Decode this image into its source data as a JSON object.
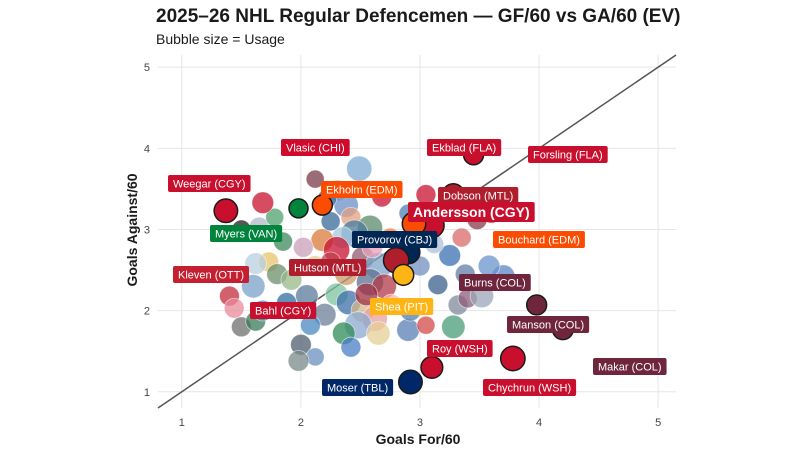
{
  "title": "2025–26 NHL Regular Defencemen — GF/60 vs GA/60 (EV)",
  "subtitle": "Bubble size = Usage",
  "chart_data": {
    "type": "scatter",
    "xlabel": "Goals For/60",
    "ylabel": "Goals Against/60",
    "xlim": [
      0.8,
      5.15
    ],
    "ylim": [
      0.8,
      5.15
    ],
    "xticks": [
      "1",
      "2",
      "3",
      "4",
      "5"
    ],
    "yticks": [
      "1",
      "2",
      "3",
      "4",
      "5"
    ],
    "grid": true,
    "reference_line": "y = x",
    "colors": {
      "CHI": "#cf0a2c",
      "FLA": "#c8102e",
      "CGY": "#c8102e",
      "EDM": "#fc4c02",
      "MTL": "#af1e2d",
      "VAN": "#00843d",
      "CBJ": "#002654",
      "OTT": "#c52032",
      "COL": "#6f263d",
      "PIT": "#fcb514",
      "WSH": "#c8102e",
      "TBL": "#002868",
      "line": "#555555",
      "grid": "#e6e6e6"
    },
    "labeled_points": [
      {
        "player": "Vlasic",
        "team": "CHI",
        "label": "Vlasic (CHI)"
      },
      {
        "player": "Ekblad",
        "team": "FLA",
        "label": "Ekblad (FLA)",
        "x": 3.45,
        "y": 3.92,
        "size": 0.55
      },
      {
        "player": "Forsling",
        "team": "FLA",
        "label": "Forsling (FLA)"
      },
      {
        "player": "Weegar",
        "team": "CGY",
        "label": "Weegar (CGY)",
        "x": 1.37,
        "y": 3.23,
        "size": 0.75
      },
      {
        "player": "Ekholm",
        "team": "EDM",
        "label": "Ekholm (EDM)",
        "x": 2.18,
        "y": 3.3,
        "size": 0.55
      },
      {
        "player": "Dobson",
        "team": "MTL",
        "label": "Dobson (MTL)",
        "x": 3.28,
        "y": 3.43,
        "size": 0.65
      },
      {
        "player": "Andersson",
        "team": "CGY",
        "label": "Andersson (CGY)",
        "highlight": true,
        "x": 3.1,
        "y": 3.05,
        "size": 0.8
      },
      {
        "player": "Myers",
        "team": "VAN",
        "label": "Myers (VAN)",
        "x": 1.98,
        "y": 3.26,
        "size": 0.5
      },
      {
        "player": "Provorov",
        "team": "CBJ",
        "label": "Provorov (CBJ)",
        "x": 2.9,
        "y": 2.72,
        "size": 0.75
      },
      {
        "player": "Bouchard",
        "team": "EDM",
        "label": "Bouchard (EDM)",
        "x": 2.95,
        "y": 3.07,
        "size": 0.75
      },
      {
        "player": "Kleven",
        "team": "OTT",
        "label": "Kleven (OTT)"
      },
      {
        "player": "Hutson",
        "team": "MTL",
        "label": "Hutson (MTL)",
        "x": 2.8,
        "y": 2.62,
        "size": 0.85
      },
      {
        "player": "Burns",
        "team": "COL",
        "label": "Burns (COL)"
      },
      {
        "player": "Bahl",
        "team": "CGY",
        "label": "Bahl (CGY)"
      },
      {
        "player": "Shea",
        "team": "PIT",
        "label": "Shea (PIT)",
        "x": 2.86,
        "y": 2.44,
        "size": 0.6
      },
      {
        "player": "Manson",
        "team": "COL",
        "label": "Manson (COL)",
        "x": 3.98,
        "y": 2.07,
        "size": 0.55
      },
      {
        "player": "Roy",
        "team": "WSH",
        "label": "Roy (WSH)",
        "x": 3.1,
        "y": 1.3,
        "size": 0.65
      },
      {
        "player": "Makar",
        "team": "COL",
        "label": "Makar (COL)",
        "x": 4.2,
        "y": 1.77,
        "size": 0.6
      },
      {
        "player": "Chychrun",
        "team": "WSH",
        "label": "Chychrun (WSH)",
        "x": 3.78,
        "y": 1.41,
        "size": 0.8
      },
      {
        "player": "Moser",
        "team": "TBL",
        "label": "Moser (TBL)",
        "x": 2.92,
        "y": 1.12,
        "size": 0.75
      }
    ],
    "other_points": [
      {
        "x": 2.49,
        "y": 3.75,
        "size": 0.85,
        "color": "#7fa9d4"
      },
      {
        "x": 2.31,
        "y": 3.48,
        "size": 0.6,
        "color": "#8fb3de"
      },
      {
        "x": 2.38,
        "y": 3.3,
        "size": 0.8,
        "color": "#6b8fc7"
      },
      {
        "x": 2.42,
        "y": 3.15,
        "size": 0.55,
        "color": "#e0a080"
      },
      {
        "x": 2.68,
        "y": 3.4,
        "size": 0.55,
        "color": "#c8102e"
      },
      {
        "x": 2.58,
        "y": 3.02,
        "size": 0.85,
        "color": "#5a8a6b"
      },
      {
        "x": 2.45,
        "y": 2.95,
        "size": 0.95,
        "color": "#4b7b9c"
      },
      {
        "x": 2.35,
        "y": 2.9,
        "size": 0.65,
        "color": "#a6c8e0"
      },
      {
        "x": 2.18,
        "y": 2.87,
        "size": 0.7,
        "color": "#d97a3a"
      },
      {
        "x": 2.3,
        "y": 2.75,
        "size": 0.9,
        "color": "#c8102e"
      },
      {
        "x": 2.52,
        "y": 2.65,
        "size": 0.7,
        "color": "#8f5a6e"
      },
      {
        "x": 2.65,
        "y": 2.55,
        "size": 0.95,
        "color": "#7da6c9"
      },
      {
        "x": 2.38,
        "y": 2.45,
        "size": 0.7,
        "color": "#c89a6a"
      },
      {
        "x": 2.58,
        "y": 2.35,
        "size": 0.95,
        "color": "#5b6f8f"
      },
      {
        "x": 2.7,
        "y": 2.3,
        "size": 0.8,
        "color": "#b03a48"
      },
      {
        "x": 2.3,
        "y": 2.2,
        "size": 0.7,
        "color": "#7cc2a0"
      },
      {
        "x": 2.4,
        "y": 2.1,
        "size": 0.8,
        "color": "#3d6fa8"
      },
      {
        "x": 2.52,
        "y": 2.0,
        "size": 0.75,
        "color": "#d4b78a"
      },
      {
        "x": 2.62,
        "y": 1.9,
        "size": 0.85,
        "color": "#e9a0a0"
      },
      {
        "x": 2.2,
        "y": 1.95,
        "size": 0.7,
        "color": "#6e7f9a"
      },
      {
        "x": 2.48,
        "y": 1.82,
        "size": 0.95,
        "color": "#8aa8d0"
      },
      {
        "x": 2.36,
        "y": 1.72,
        "size": 0.7,
        "color": "#2e8b57"
      },
      {
        "x": 2.65,
        "y": 1.72,
        "size": 0.75,
        "color": "#e6cf97"
      },
      {
        "x": 2.9,
        "y": 1.76,
        "size": 0.7,
        "color": "#5a7fb5"
      },
      {
        "x": 2.0,
        "y": 1.58,
        "size": 0.6,
        "color": "#4d5d6d"
      },
      {
        "x": 2.12,
        "y": 1.43,
        "size": 0.45,
        "color": "#6a90c0"
      },
      {
        "x": 1.98,
        "y": 1.38,
        "size": 0.6,
        "color": "#7a8a8a"
      },
      {
        "x": 2.42,
        "y": 1.55,
        "size": 0.55,
        "color": "#4a7fc4"
      },
      {
        "x": 3.28,
        "y": 1.8,
        "size": 0.75,
        "color": "#4a9c7a"
      },
      {
        "x": 3.05,
        "y": 1.82,
        "size": 0.45,
        "color": "#d44a4a"
      },
      {
        "x": 3.32,
        "y": 2.07,
        "size": 0.55,
        "color": "#7d8a9a"
      },
      {
        "x": 3.4,
        "y": 2.15,
        "size": 0.5,
        "color": "#8b5e7a"
      },
      {
        "x": 3.15,
        "y": 2.32,
        "size": 0.55,
        "color": "#3b5f8a"
      },
      {
        "x": 3.38,
        "y": 2.45,
        "size": 0.55,
        "color": "#5f7fa5"
      },
      {
        "x": 3.7,
        "y": 2.42,
        "size": 0.75,
        "color": "#5b86c4"
      },
      {
        "x": 3.58,
        "y": 2.55,
        "size": 0.65,
        "color": "#6a94cc"
      },
      {
        "x": 3.25,
        "y": 2.68,
        "size": 0.65,
        "color": "#3a6fb0"
      },
      {
        "x": 3.52,
        "y": 2.18,
        "size": 0.75,
        "color": "#9aa5b5"
      },
      {
        "x": 3.35,
        "y": 2.9,
        "size": 0.5,
        "color": "#d96a6a"
      },
      {
        "x": 3.6,
        "y": 3.2,
        "size": 0.55,
        "color": "#c8102e"
      },
      {
        "x": 3.48,
        "y": 3.12,
        "size": 0.55,
        "color": "#8a3a4a"
      },
      {
        "x": 3.05,
        "y": 3.43,
        "size": 0.55,
        "color": "#c8102e"
      },
      {
        "x": 3.1,
        "y": 3.15,
        "size": 0.45,
        "color": "#e05050"
      },
      {
        "x": 2.9,
        "y": 3.2,
        "size": 0.45,
        "color": "#4f7fb5"
      },
      {
        "x": 2.75,
        "y": 2.9,
        "size": 0.5,
        "color": "#ff7a30"
      },
      {
        "x": 1.4,
        "y": 2.18,
        "size": 0.55,
        "color": "#c42c3c"
      },
      {
        "x": 1.44,
        "y": 2.03,
        "size": 0.55,
        "color": "#e88a9a"
      },
      {
        "x": 1.5,
        "y": 1.8,
        "size": 0.55,
        "color": "#6f6f6f"
      },
      {
        "x": 1.62,
        "y": 1.87,
        "size": 0.55,
        "color": "#3b7a5a"
      },
      {
        "x": 1.68,
        "y": 2.0,
        "size": 0.6,
        "color": "#4a90c8"
      },
      {
        "x": 1.6,
        "y": 2.3,
        "size": 0.75,
        "color": "#7aa2c8"
      },
      {
        "x": 1.73,
        "y": 2.6,
        "size": 0.55,
        "color": "#e8c468"
      },
      {
        "x": 1.62,
        "y": 2.58,
        "size": 0.65,
        "color": "#b8d0e0"
      },
      {
        "x": 1.8,
        "y": 2.45,
        "size": 0.6,
        "color": "#6b8f6b"
      },
      {
        "x": 1.92,
        "y": 2.38,
        "size": 0.6,
        "color": "#9ab88a"
      },
      {
        "x": 2.05,
        "y": 2.18,
        "size": 0.7,
        "color": "#5a7a9a"
      },
      {
        "x": 1.88,
        "y": 2.1,
        "size": 0.55,
        "color": "#2e6f9e"
      },
      {
        "x": 2.02,
        "y": 2.78,
        "size": 0.55,
        "color": "#c8a0b8"
      },
      {
        "x": 1.85,
        "y": 2.85,
        "size": 0.5,
        "color": "#3c8a5a"
      },
      {
        "x": 1.65,
        "y": 3.03,
        "size": 0.55,
        "color": "#b0b8c8"
      },
      {
        "x": 1.78,
        "y": 3.15,
        "size": 0.45,
        "color": "#50a070"
      },
      {
        "x": 1.5,
        "y": 3.0,
        "size": 0.5,
        "color": "#1f1f1f"
      },
      {
        "x": 1.68,
        "y": 3.33,
        "size": 0.65,
        "color": "#c8102e"
      },
      {
        "x": 2.12,
        "y": 3.62,
        "size": 0.45,
        "color": "#7a3a4a"
      },
      {
        "x": 2.25,
        "y": 3.1,
        "size": 0.5,
        "color": "#3a6a9a"
      },
      {
        "x": 2.12,
        "y": 2.55,
        "size": 0.6,
        "color": "#e0d090"
      },
      {
        "x": 2.25,
        "y": 2.6,
        "size": 0.55,
        "color": "#c04050"
      },
      {
        "x": 2.55,
        "y": 2.2,
        "size": 0.7,
        "color": "#a03040"
      },
      {
        "x": 2.08,
        "y": 1.82,
        "size": 0.55,
        "color": "#4a8ac0"
      },
      {
        "x": 2.92,
        "y": 2.0,
        "size": 0.6,
        "color": "#5080b0"
      },
      {
        "x": 2.76,
        "y": 2.08,
        "size": 0.55,
        "color": "#ffb0a0"
      },
      {
        "x": 3.0,
        "y": 2.55,
        "size": 0.55,
        "color": "#7090c0"
      },
      {
        "x": 3.12,
        "y": 2.82,
        "size": 0.5,
        "color": "#b0c0d8"
      },
      {
        "x": 2.22,
        "y": 3.38,
        "size": 0.5,
        "color": "#2f5f8f"
      },
      {
        "x": 2.6,
        "y": 2.78,
        "size": 0.6,
        "color": "#e6a0b8"
      }
    ]
  }
}
